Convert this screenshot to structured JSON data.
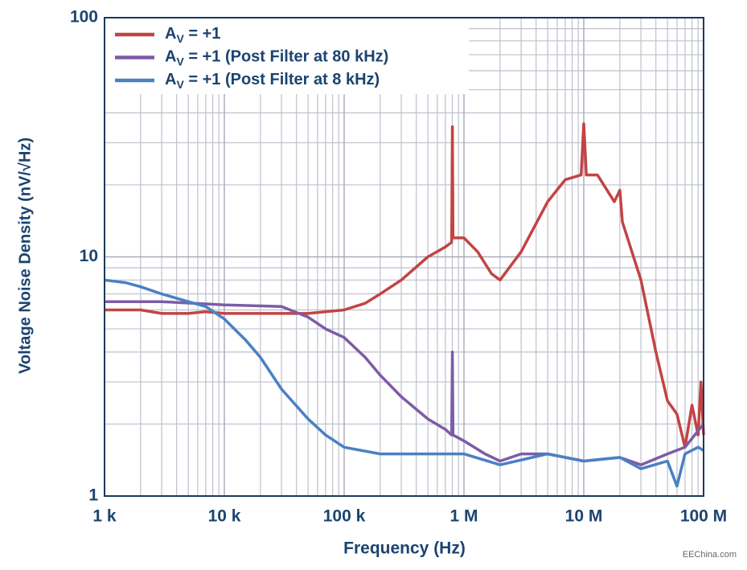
{
  "chart_data": {
    "type": "line",
    "xlabel": "Frequency (Hz)",
    "ylabel": "Voltage Noise Density (nV/√Hz)",
    "xscale": "log",
    "yscale": "log",
    "grid": true,
    "legend": "upper left",
    "xlim": [
      1000,
      100000000
    ],
    "ylim": [
      1,
      100
    ],
    "xticks": [
      {
        "value": 1000,
        "label": "1 k"
      },
      {
        "value": 10000,
        "label": "10 k"
      },
      {
        "value": 100000,
        "label": "100 k"
      },
      {
        "value": 1000000,
        "label": "1 M"
      },
      {
        "value": 10000000,
        "label": "10 M"
      },
      {
        "value": 100000000,
        "label": "100 M"
      }
    ],
    "yticks": [
      1,
      10,
      100
    ],
    "series": [
      {
        "name": "AV = +1",
        "color": "#c24443",
        "x": [
          1000,
          1500,
          2000,
          3000,
          5000,
          7000,
          10000,
          20000,
          30000,
          50000,
          70000,
          100000,
          150000,
          200000,
          300000,
          500000,
          700000,
          790000,
          800000,
          810000,
          1000000,
          1300000,
          1700000,
          2000000,
          3000000,
          5000000,
          7000000,
          9500000,
          10000000,
          10500000,
          13000000,
          18000000,
          20000000,
          21000000,
          30000000,
          40000000,
          50000000,
          60000000,
          70000000,
          80000000,
          90000000,
          95000000,
          100000000
        ],
        "values": [
          6.0,
          6.0,
          6.0,
          5.8,
          5.8,
          5.9,
          5.8,
          5.8,
          5.8,
          5.8,
          5.9,
          6.0,
          6.4,
          7.0,
          8.0,
          10,
          11,
          11.5,
          35,
          12,
          12,
          10.5,
          8.5,
          8,
          10.5,
          17,
          21,
          22,
          36,
          22,
          22,
          17,
          19,
          14,
          8,
          4,
          2.5,
          2.2,
          1.6,
          2.4,
          1.8,
          3,
          1.8
        ]
      },
      {
        "name": "AV = +1 (Post Filter at 80 kHz)",
        "color": "#7c5ca6",
        "x": [
          1000,
          3000,
          10000,
          30000,
          50000,
          70000,
          100000,
          150000,
          200000,
          300000,
          500000,
          700000,
          790000,
          800000,
          810000,
          1000000,
          1500000,
          2000000,
          3000000,
          5000000,
          10000000,
          20000000,
          30000000,
          50000000,
          70000000,
          100000000
        ],
        "values": [
          6.5,
          6.5,
          6.3,
          6.2,
          5.6,
          5.0,
          4.6,
          3.8,
          3.2,
          2.6,
          2.1,
          1.9,
          1.8,
          4.0,
          1.8,
          1.7,
          1.5,
          1.4,
          1.5,
          1.5,
          1.4,
          1.45,
          1.35,
          1.5,
          1.6,
          2.0
        ]
      },
      {
        "name": "AV = +1 (Post Filter at 8 kHz)",
        "color": "#4a80c4",
        "x": [
          1000,
          1500,
          2000,
          3000,
          5000,
          7000,
          10000,
          15000,
          20000,
          30000,
          50000,
          70000,
          100000,
          200000,
          500000,
          1000000,
          2000000,
          5000000,
          10000000,
          20000000,
          30000000,
          50000000,
          60000000,
          70000000,
          90000000,
          100000000
        ],
        "values": [
          8,
          7.8,
          7.5,
          7,
          6.5,
          6.2,
          5.5,
          4.5,
          3.8,
          2.8,
          2.1,
          1.8,
          1.6,
          1.5,
          1.5,
          1.5,
          1.35,
          1.5,
          1.4,
          1.45,
          1.3,
          1.4,
          1.1,
          1.5,
          1.6,
          1.55
        ]
      }
    ],
    "watermark": "EEChina.com"
  }
}
